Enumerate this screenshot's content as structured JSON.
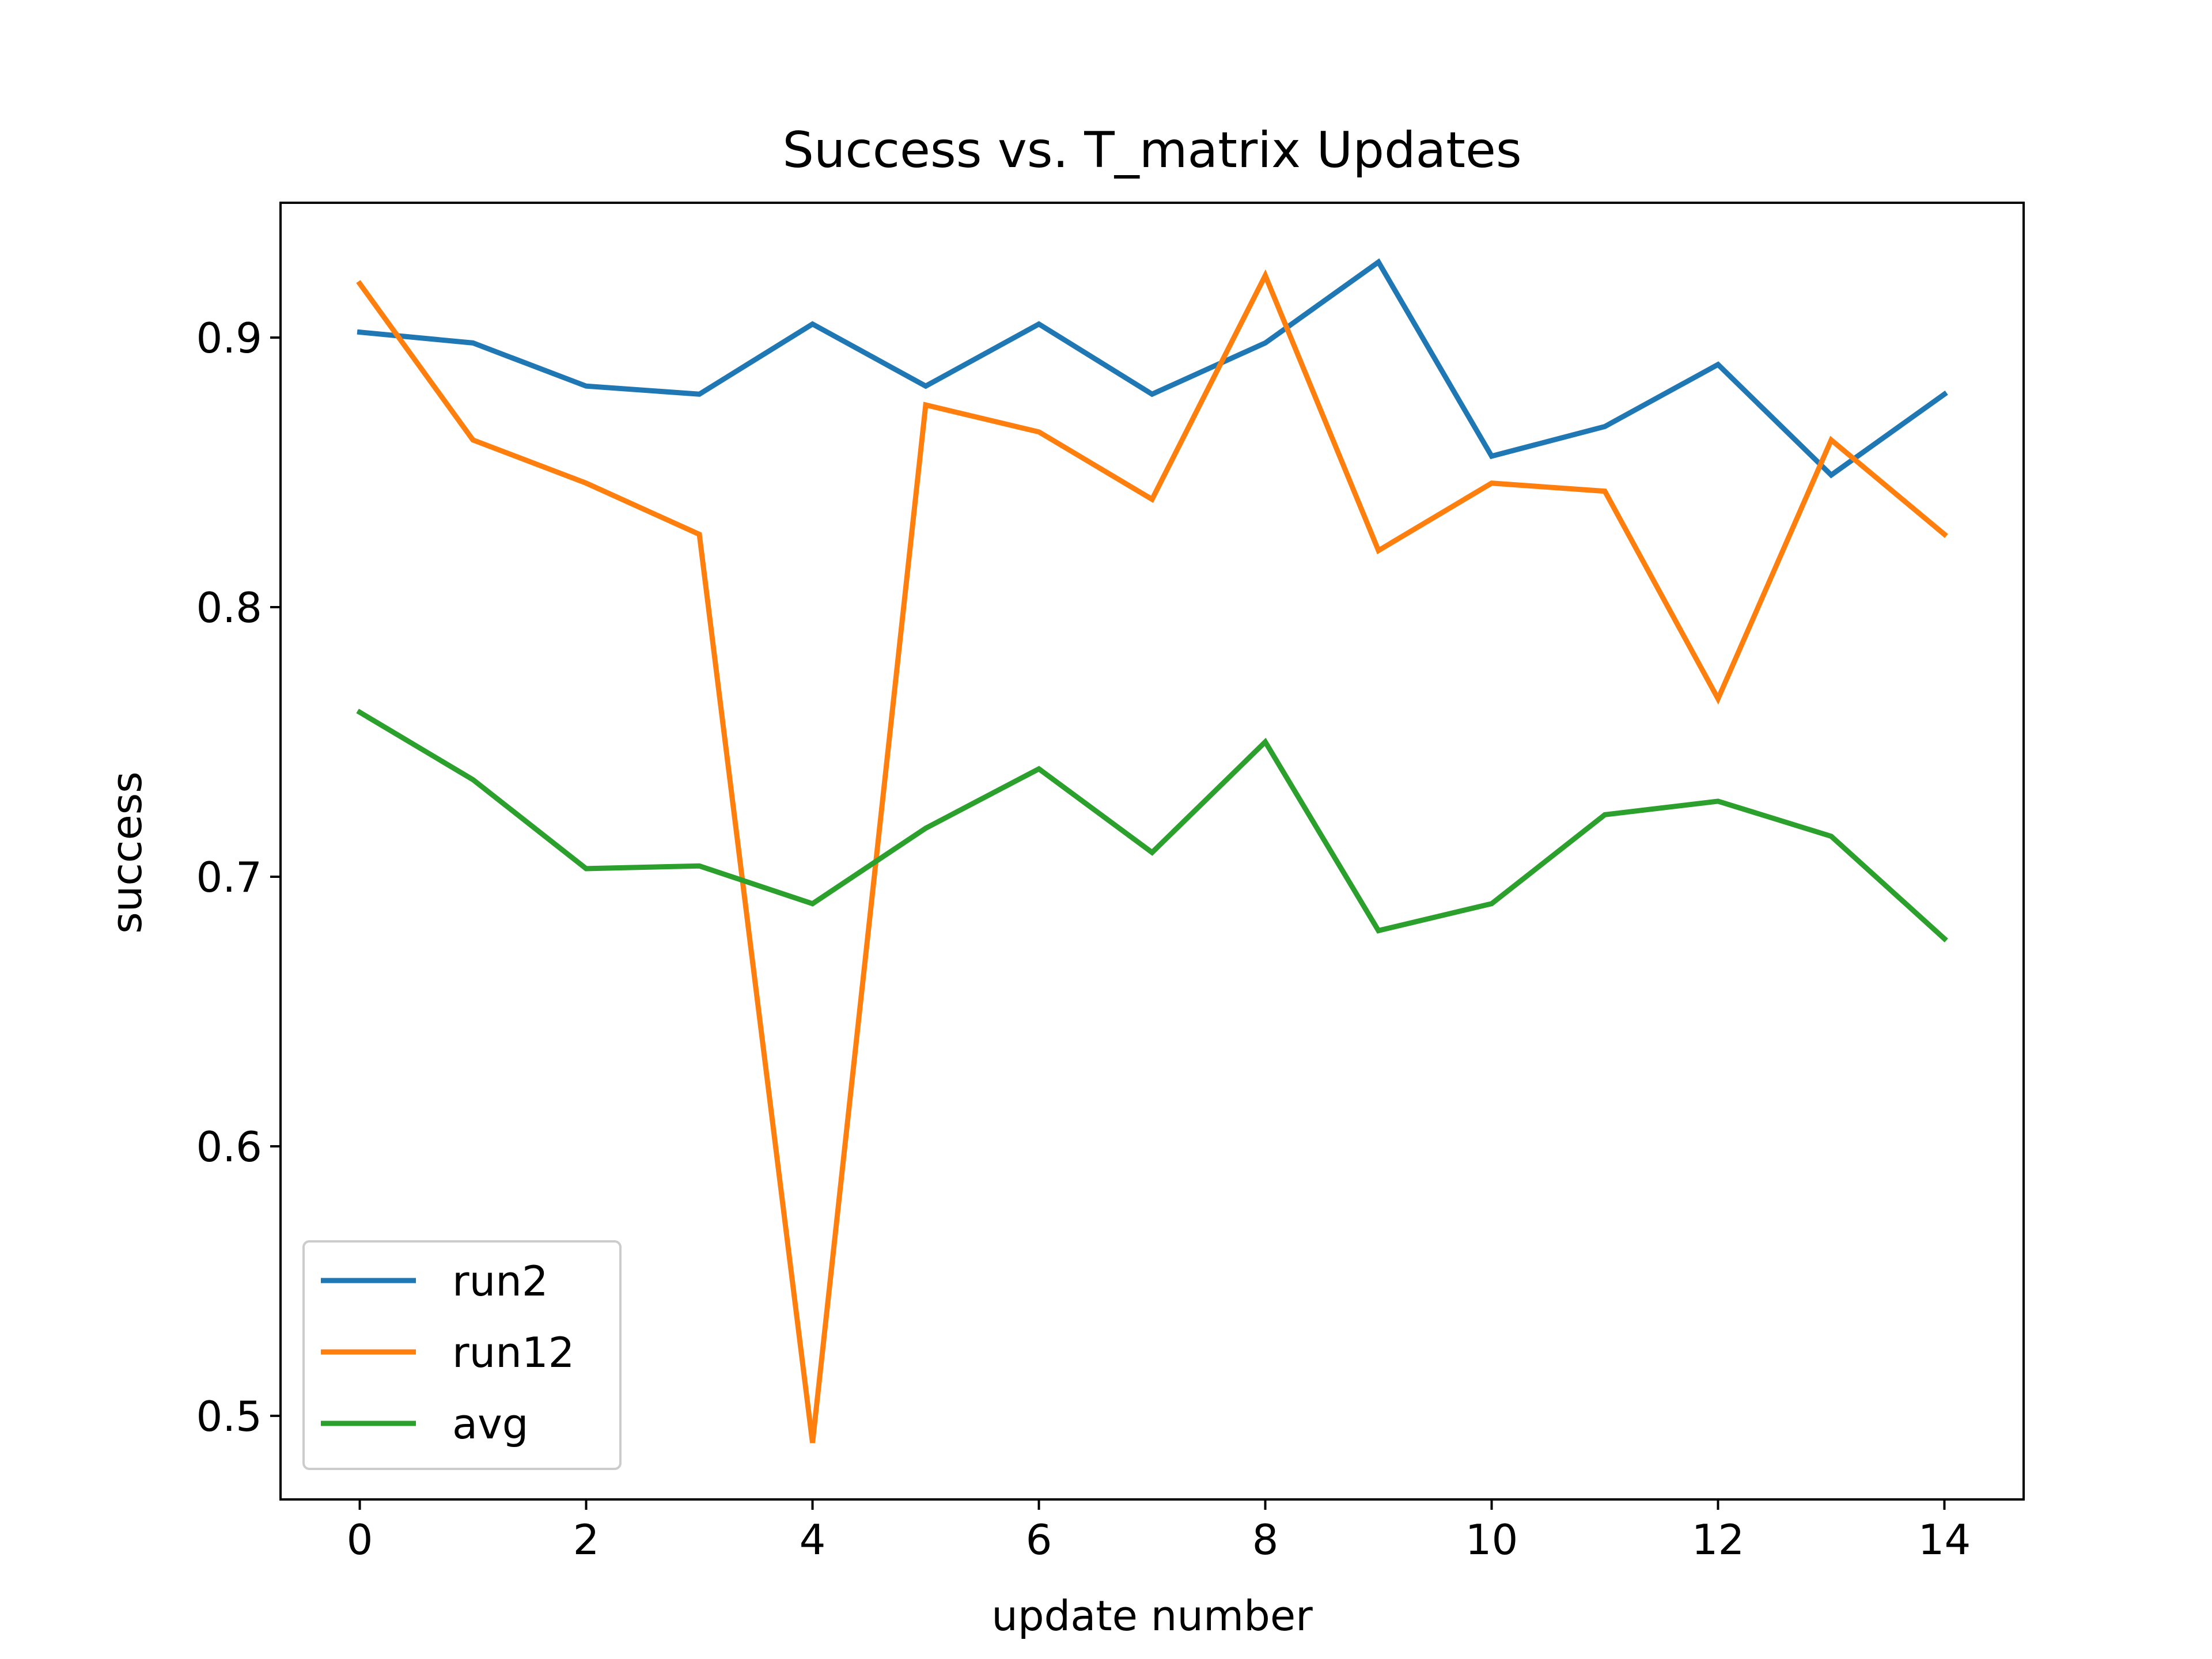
{
  "chart_data": {
    "type": "line",
    "title": "Success vs. T_matrix Updates",
    "xlabel": "update number",
    "ylabel": "success",
    "xlim": [
      -0.7,
      14.7
    ],
    "ylim": [
      0.469,
      0.95
    ],
    "xticks": [
      0,
      2,
      4,
      6,
      8,
      10,
      12,
      14
    ],
    "xtick_labels": [
      "0",
      "2",
      "4",
      "6",
      "8",
      "10",
      "12",
      "14"
    ],
    "yticks": [
      0.5,
      0.6,
      0.7,
      0.8,
      0.9
    ],
    "ytick_labels": [
      "0.5",
      "0.6",
      "0.7",
      "0.8",
      "0.9"
    ],
    "grid": false,
    "legend_position": "lower-left",
    "x": [
      0,
      1,
      2,
      3,
      4,
      5,
      6,
      7,
      8,
      9,
      10,
      11,
      12,
      13,
      14
    ],
    "series": [
      {
        "name": "run2",
        "color": "#1f77b4",
        "values": [
          0.902,
          0.898,
          0.882,
          0.879,
          0.905,
          0.882,
          0.905,
          0.879,
          0.898,
          0.928,
          0.856,
          0.867,
          0.89,
          0.849,
          0.879
        ]
      },
      {
        "name": "run12",
        "color": "#ff7f0e",
        "values": [
          0.92,
          0.862,
          0.846,
          0.827,
          0.49,
          0.875,
          0.865,
          0.84,
          0.923,
          0.821,
          0.846,
          0.843,
          0.766,
          0.862,
          0.827
        ]
      },
      {
        "name": "avg",
        "color": "#2ca02c",
        "values": [
          0.761,
          0.736,
          0.703,
          0.704,
          0.69,
          0.718,
          0.74,
          0.709,
          0.75,
          0.68,
          0.69,
          0.723,
          0.728,
          0.715,
          0.677
        ]
      }
    ]
  }
}
